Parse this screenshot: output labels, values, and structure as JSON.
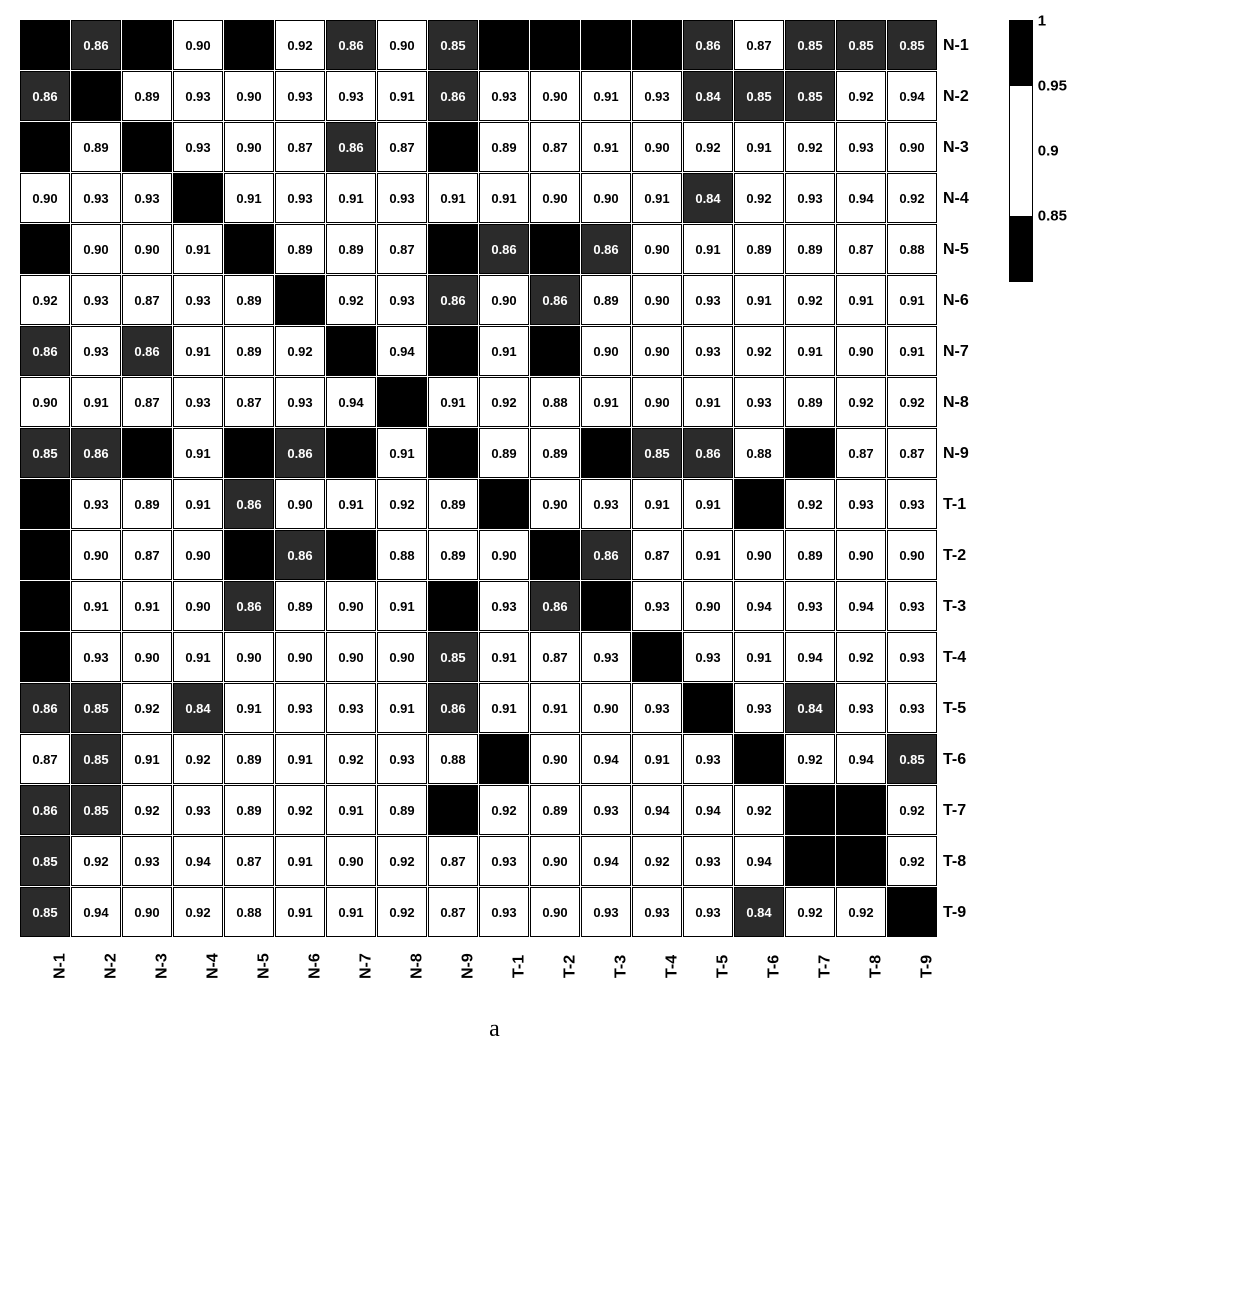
{
  "heatmap": {
    "type": "heatmap",
    "n": 18,
    "row_labels": [
      "N-1",
      "N-2",
      "N-3",
      "N-4",
      "N-5",
      "N-6",
      "N-7",
      "N-8",
      "N-9",
      "T-1",
      "T-2",
      "T-3",
      "T-4",
      "T-5",
      "T-6",
      "T-7",
      "T-8",
      "T-9"
    ],
    "col_labels": [
      "N-1",
      "N-2",
      "N-3",
      "N-4",
      "N-5",
      "N-6",
      "N-7",
      "N-8",
      "N-9",
      "T-1",
      "T-2",
      "T-3",
      "T-4",
      "T-5",
      "T-6",
      "T-7",
      "T-8",
      "T-9"
    ],
    "cell_border_color": "#000000",
    "cell_fontsize": 13,
    "label_fontsize": 16,
    "thresholds": {
      "black_min": 0.95,
      "noise_min": 0.84,
      "noise_max": 0.86
    },
    "colors": {
      "black": "#000000",
      "dark_noise": "#2b2b2b",
      "white": "#ffffff",
      "text_on_black": "#ffffff",
      "text_on_white": "#000000"
    },
    "rows": [
      [
        1.0,
        0.86,
        1.0,
        0.9,
        1.0,
        0.92,
        0.86,
        0.9,
        0.85,
        1.0,
        1.0,
        1.0,
        1.0,
        0.86,
        0.87,
        0.85,
        0.85,
        0.85
      ],
      [
        0.86,
        1.0,
        0.89,
        0.93,
        0.9,
        0.93,
        0.93,
        0.91,
        0.86,
        0.93,
        0.9,
        0.91,
        0.93,
        0.84,
        0.85,
        0.85,
        0.92,
        0.94
      ],
      [
        1.0,
        0.89,
        1.0,
        0.93,
        0.9,
        0.87,
        0.86,
        0.87,
        1.0,
        0.89,
        0.87,
        0.91,
        0.9,
        0.92,
        0.91,
        0.92,
        0.93,
        0.9
      ],
      [
        0.9,
        0.93,
        0.93,
        1.0,
        0.91,
        0.93,
        0.91,
        0.93,
        0.91,
        0.91,
        0.9,
        0.9,
        0.91,
        0.84,
        0.92,
        0.93,
        0.94,
        0.92
      ],
      [
        1.0,
        0.9,
        0.9,
        0.91,
        1.0,
        0.89,
        0.89,
        0.87,
        1.0,
        0.86,
        1.0,
        0.86,
        0.9,
        0.91,
        0.89,
        0.89,
        0.87,
        0.88
      ],
      [
        0.92,
        0.93,
        0.87,
        0.93,
        0.89,
        1.0,
        0.92,
        0.93,
        0.86,
        0.9,
        0.86,
        0.89,
        0.9,
        0.93,
        0.91,
        0.92,
        0.91,
        0.91
      ],
      [
        0.86,
        0.93,
        0.86,
        0.91,
        0.89,
        0.92,
        1.0,
        0.94,
        1.0,
        0.91,
        1.0,
        0.9,
        0.9,
        0.93,
        0.92,
        0.91,
        0.9,
        0.91
      ],
      [
        0.9,
        0.91,
        0.87,
        0.93,
        0.87,
        0.93,
        0.94,
        1.0,
        0.91,
        0.92,
        0.88,
        0.91,
        0.9,
        0.91,
        0.93,
        0.89,
        0.92,
        0.92
      ],
      [
        0.85,
        0.86,
        1.0,
        0.91,
        1.0,
        0.86,
        1.0,
        0.91,
        1.0,
        0.89,
        0.89,
        1.0,
        0.85,
        0.86,
        0.88,
        1.0,
        0.87,
        0.87
      ],
      [
        1.0,
        0.93,
        0.89,
        0.91,
        0.86,
        0.9,
        0.91,
        0.92,
        0.89,
        1.0,
        0.9,
        0.93,
        0.91,
        0.91,
        1.0,
        0.92,
        0.93,
        0.93
      ],
      [
        1.0,
        0.9,
        0.87,
        0.9,
        1.0,
        0.86,
        1.0,
        0.88,
        0.89,
        0.9,
        1.0,
        0.86,
        0.87,
        0.91,
        0.9,
        0.89,
        0.9,
        0.9
      ],
      [
        1.0,
        0.91,
        0.91,
        0.9,
        0.86,
        0.89,
        0.9,
        0.91,
        1.0,
        0.93,
        0.86,
        1.0,
        0.93,
        0.9,
        0.94,
        0.93,
        0.94,
        0.93
      ],
      [
        1.0,
        0.93,
        0.9,
        0.91,
        0.9,
        0.9,
        0.9,
        0.9,
        0.85,
        0.91,
        0.87,
        0.93,
        1.0,
        0.93,
        0.91,
        0.94,
        0.92,
        0.93
      ],
      [
        0.86,
        0.85,
        0.92,
        0.84,
        0.91,
        0.93,
        0.93,
        0.91,
        0.86,
        0.91,
        0.91,
        0.9,
        0.93,
        1.0,
        0.93,
        0.84,
        0.93,
        0.93
      ],
      [
        0.87,
        0.85,
        0.91,
        0.92,
        0.89,
        0.91,
        0.92,
        0.93,
        0.88,
        1.0,
        0.9,
        0.94,
        0.91,
        0.93,
        1.0,
        0.92,
        0.94,
        0.85
      ],
      [
        0.86,
        0.85,
        0.92,
        0.93,
        0.89,
        0.92,
        0.91,
        0.89,
        1.0,
        0.92,
        0.89,
        0.93,
        0.94,
        0.94,
        0.92,
        1.0,
        1.0,
        0.92
      ],
      [
        0.85,
        0.92,
        0.93,
        0.94,
        0.87,
        0.91,
        0.9,
        0.92,
        0.87,
        0.93,
        0.9,
        0.94,
        0.92,
        0.93,
        0.94,
        1.0,
        1.0,
        0.92
      ],
      [
        0.85,
        0.94,
        0.9,
        0.92,
        0.88,
        0.91,
        0.91,
        0.92,
        0.87,
        0.93,
        0.9,
        0.93,
        0.93,
        0.93,
        0.84,
        0.92,
        0.92,
        1.0
      ]
    ]
  },
  "colorbar": {
    "min": 0.8,
    "max": 1.0,
    "ticks": [
      {
        "value": 1.0,
        "label": "1",
        "pos_pct": 0
      },
      {
        "value": 0.95,
        "label": "0.95",
        "pos_pct": 25
      },
      {
        "value": 0.9,
        "label": "0.9",
        "pos_pct": 50
      },
      {
        "value": 0.85,
        "label": "0.85",
        "pos_pct": 75
      }
    ],
    "segments": [
      {
        "from_pct": 0,
        "to_pct": 25,
        "color": "#000000"
      },
      {
        "from_pct": 25,
        "to_pct": 75,
        "color": "#ffffff"
      },
      {
        "from_pct": 75,
        "to_pct": 100,
        "color": "#000000"
      }
    ]
  },
  "caption": "a"
}
